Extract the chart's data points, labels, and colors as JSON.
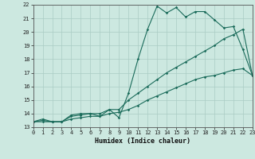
{
  "title": "",
  "xlabel": "Humidex (Indice chaleur)",
  "xlim": [
    0,
    23
  ],
  "ylim": [
    13,
    22
  ],
  "xticks": [
    0,
    1,
    2,
    3,
    4,
    5,
    6,
    7,
    8,
    9,
    10,
    11,
    12,
    13,
    14,
    15,
    16,
    17,
    18,
    19,
    20,
    21,
    22,
    23
  ],
  "yticks": [
    13,
    14,
    15,
    16,
    17,
    18,
    19,
    20,
    21,
    22
  ],
  "bg_color": "#cce8e0",
  "grid_color": "#aaccC4",
  "line_color": "#1a6b5a",
  "line1_x": [
    0,
    1,
    2,
    3,
    4,
    5,
    6,
    7,
    8,
    9,
    10,
    11,
    12,
    13,
    14,
    15,
    16,
    17,
    18,
    19,
    20,
    21,
    22,
    23
  ],
  "line1_y": [
    13.4,
    13.6,
    13.4,
    13.4,
    13.9,
    14.0,
    14.0,
    13.8,
    14.3,
    13.7,
    15.5,
    18.0,
    20.2,
    21.9,
    21.4,
    21.8,
    21.1,
    21.5,
    21.5,
    20.9,
    20.3,
    20.4,
    18.7,
    16.8
  ],
  "line2_x": [
    0,
    1,
    2,
    3,
    4,
    5,
    6,
    7,
    8,
    9,
    10,
    11,
    12,
    13,
    14,
    15,
    16,
    17,
    18,
    19,
    20,
    21,
    22,
    23
  ],
  "line2_y": [
    13.4,
    13.5,
    13.4,
    13.4,
    13.8,
    13.9,
    14.0,
    14.0,
    14.3,
    14.3,
    15.0,
    15.5,
    16.0,
    16.5,
    17.0,
    17.4,
    17.8,
    18.2,
    18.6,
    19.0,
    19.5,
    19.8,
    20.2,
    16.8
  ],
  "line3_x": [
    0,
    1,
    2,
    3,
    4,
    5,
    6,
    7,
    8,
    9,
    10,
    11,
    12,
    13,
    14,
    15,
    16,
    17,
    18,
    19,
    20,
    21,
    22,
    23
  ],
  "line3_y": [
    13.4,
    13.4,
    13.4,
    13.4,
    13.6,
    13.7,
    13.8,
    13.8,
    14.0,
    14.1,
    14.3,
    14.6,
    15.0,
    15.3,
    15.6,
    15.9,
    16.2,
    16.5,
    16.7,
    16.8,
    17.0,
    17.2,
    17.3,
    16.8
  ],
  "tick_fontsize": 5.0,
  "xlabel_fontsize": 6.0,
  "marker_size": 1.8,
  "line_width": 0.8
}
